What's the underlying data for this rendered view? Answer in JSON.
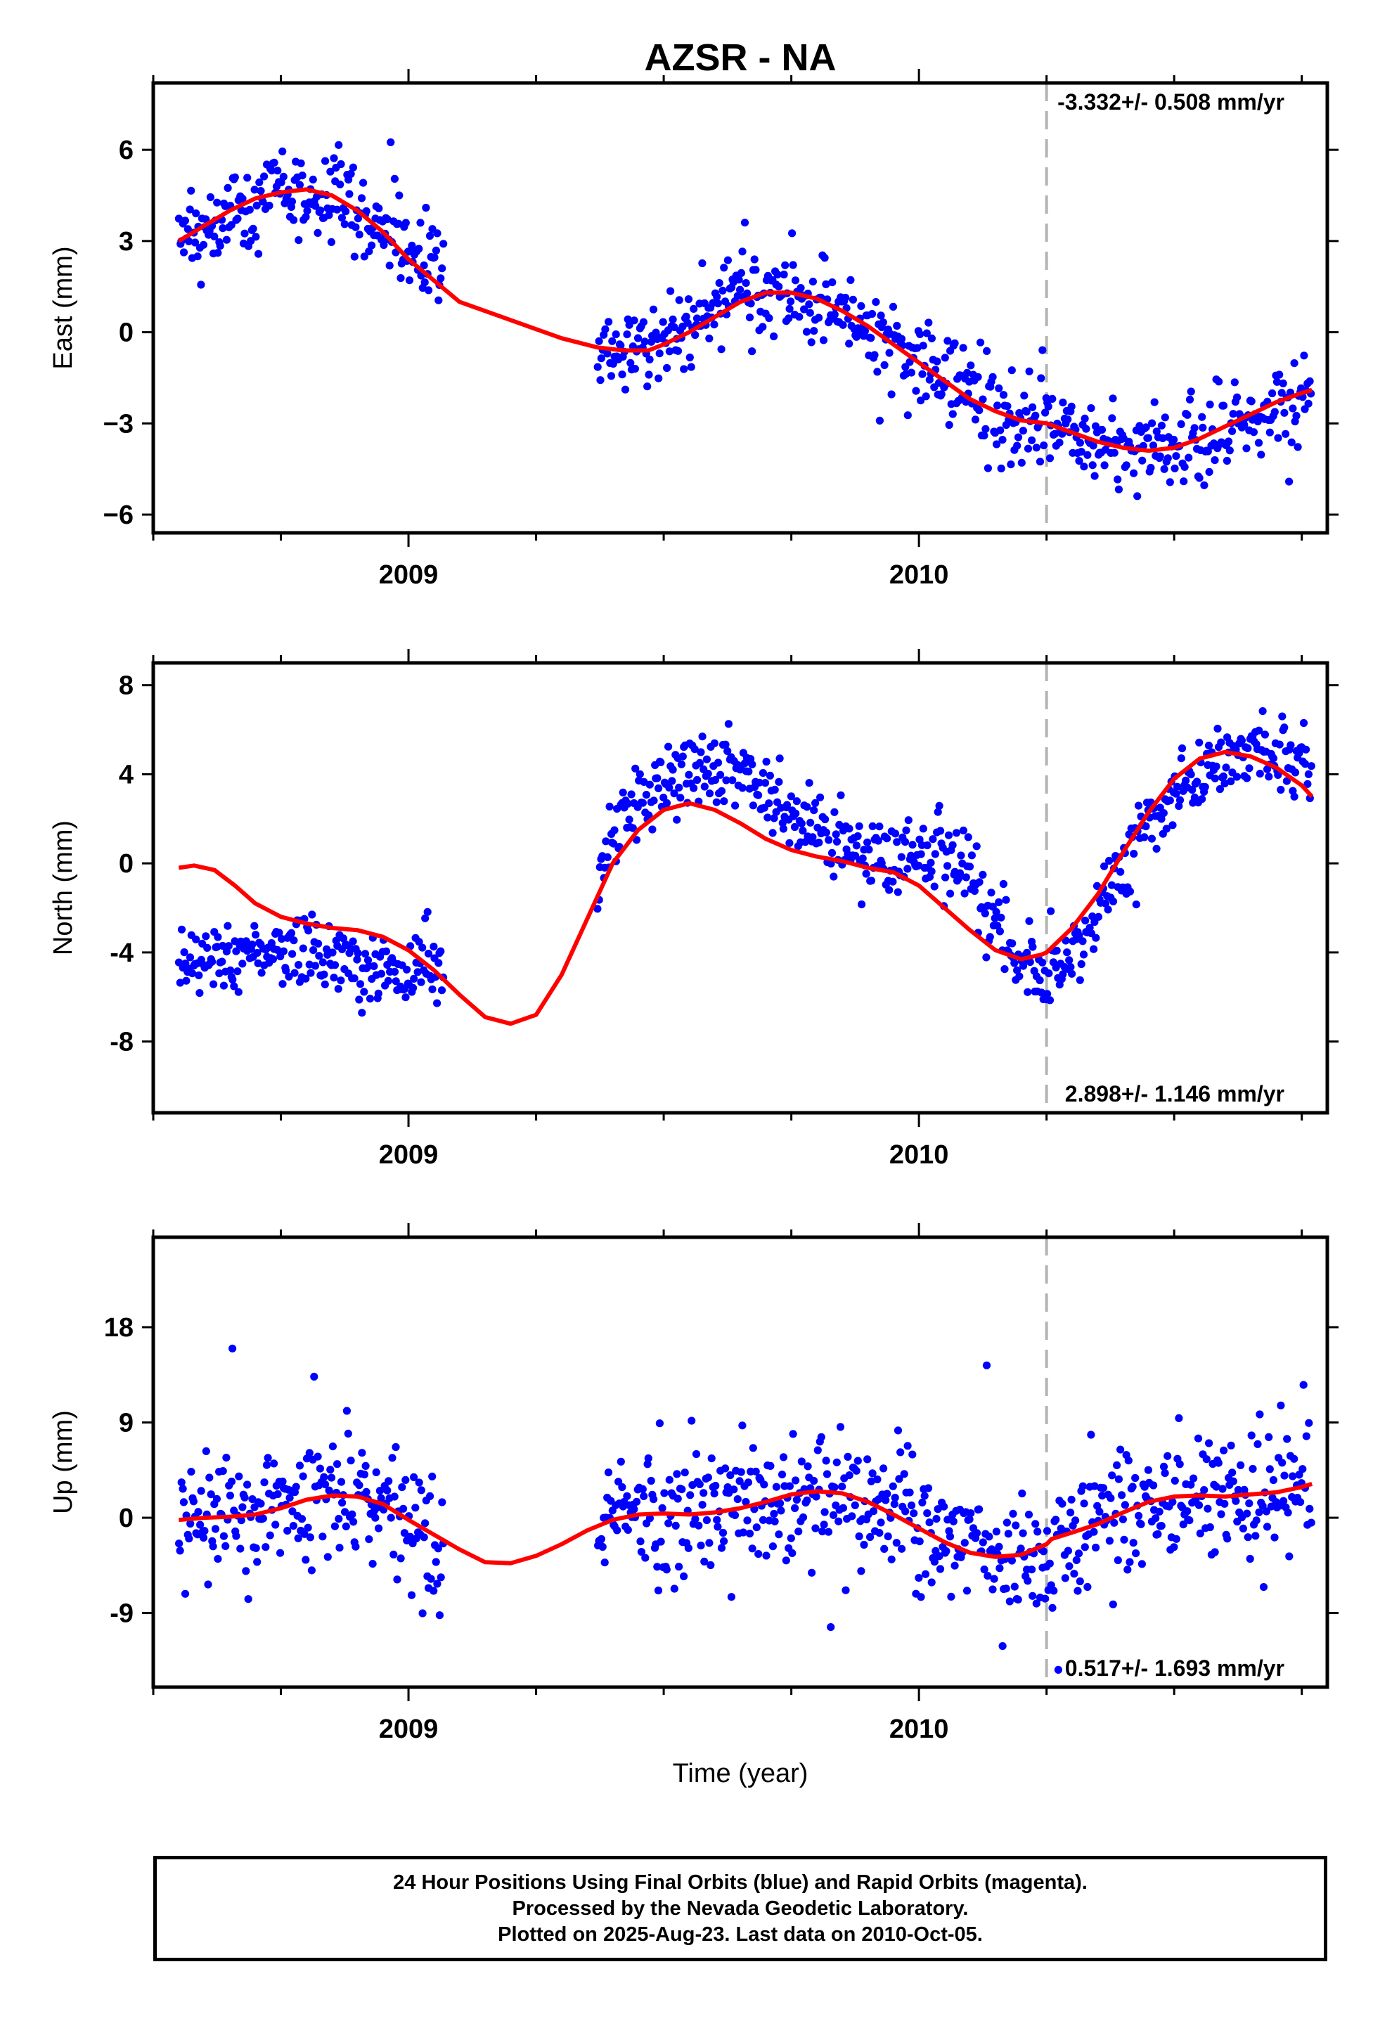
{
  "chart_data": {
    "title": "AZSR - NA",
    "type": "scatter",
    "xlabel": "Time (year)",
    "x_range": [
      2008.5,
      2010.8
    ],
    "x_ticks": [
      2009,
      2010
    ],
    "colors": {
      "observed": "#0000ff",
      "model": "#ff0000",
      "marker_line": "#b4b4b4",
      "frame": "#000000"
    },
    "offset_marker_x": 2010.25,
    "panels": [
      {
        "name": "East",
        "ylabel": "East (mm)",
        "ylim": [
          -6.6,
          8.2
        ],
        "yticks": [
          6,
          3,
          0,
          -3,
          -6
        ],
        "ytick_labels": [
          "6",
          "3",
          "0",
          "−3",
          "−6"
        ],
        "rate_text": "-3.332+/- 0.508 mm/yr",
        "rate_position": "top",
        "model_curve": {
          "x": [
            2008.55,
            2008.6,
            2008.65,
            2008.7,
            2008.75,
            2008.8,
            2008.85,
            2008.9,
            2008.95,
            2009.0,
            2009.05,
            2009.1,
            2009.2,
            2009.3,
            2009.37,
            2009.42,
            2009.47,
            2009.5,
            2009.55,
            2009.6,
            2009.65,
            2009.7,
            2009.75,
            2009.8,
            2009.85,
            2009.9,
            2009.95,
            2010.0,
            2010.05,
            2010.1,
            2010.15,
            2010.2,
            2010.25,
            2010.3,
            2010.35,
            2010.4,
            2010.45,
            2010.5,
            2010.55,
            2010.6,
            2010.65,
            2010.7,
            2010.75,
            2010.77
          ],
          "y": [
            3.0,
            3.5,
            4.0,
            4.4,
            4.6,
            4.7,
            4.5,
            4.0,
            3.3,
            2.4,
            1.7,
            1.0,
            0.4,
            -0.2,
            -0.5,
            -0.6,
            -0.6,
            -0.4,
            0.0,
            0.5,
            1.0,
            1.3,
            1.3,
            1.1,
            0.7,
            0.2,
            -0.4,
            -1.0,
            -1.6,
            -2.2,
            -2.6,
            -2.9,
            -3.0,
            -3.3,
            -3.6,
            -3.8,
            -3.9,
            -3.8,
            -3.5,
            -3.1,
            -2.7,
            -2.3,
            -2.0,
            -1.9
          ]
        },
        "segments": [
          {
            "x0": 2008.55,
            "x1": 2009.07,
            "trend": [
              3.0,
              3.5,
              4.0,
              4.4,
              4.6,
              4.7,
              4.5,
              4.0,
              3.3,
              2.4,
              1.7
            ],
            "spread": 1.1
          },
          {
            "x0": 2009.37,
            "x1": 2010.77,
            "trend": [
              -0.5,
              -0.6,
              -0.4,
              0.1,
              0.6,
              1.1,
              1.3,
              1.2,
              0.8,
              0.2,
              -0.5,
              -1.1,
              -1.8,
              -2.4,
              -2.8,
              -3.0,
              -3.3,
              -3.6,
              -3.8,
              -3.9,
              -3.7,
              -3.3,
              -2.8,
              -2.3,
              -2.0
            ],
            "spread": 1.05
          }
        ]
      },
      {
        "name": "North",
        "ylabel": "North (mm)",
        "ylim": [
          -11.2,
          9.0
        ],
        "yticks": [
          8,
          4,
          0,
          -4,
          -8
        ],
        "ytick_labels": [
          "8",
          "4",
          "0",
          "-4",
          "-8"
        ],
        "rate_text": "2.898+/- 1.146 mm/yr",
        "rate_position": "bottom",
        "model_curve": {
          "x": [
            2008.55,
            2008.58,
            2008.62,
            2008.66,
            2008.7,
            2008.75,
            2008.8,
            2008.85,
            2008.9,
            2008.95,
            2009.0,
            2009.05,
            2009.1,
            2009.15,
            2009.2,
            2009.25,
            2009.3,
            2009.35,
            2009.4,
            2009.45,
            2009.5,
            2009.55,
            2009.6,
            2009.65,
            2009.7,
            2009.75,
            2009.8,
            2009.85,
            2009.9,
            2009.95,
            2010.0,
            2010.05,
            2010.1,
            2010.15,
            2010.2,
            2010.24,
            2010.25,
            2010.3,
            2010.35,
            2010.4,
            2010.45,
            2010.5,
            2010.55,
            2010.6,
            2010.65,
            2010.7,
            2010.75,
            2010.77
          ],
          "y": [
            -0.2,
            -0.1,
            -0.3,
            -1.0,
            -1.8,
            -2.4,
            -2.7,
            -2.9,
            -3.0,
            -3.3,
            -3.9,
            -4.8,
            -5.9,
            -6.9,
            -7.2,
            -6.8,
            -5.0,
            -2.5,
            0.0,
            1.5,
            2.4,
            2.7,
            2.4,
            1.8,
            1.1,
            0.6,
            0.3,
            0.1,
            -0.2,
            -0.4,
            -1.0,
            -2.0,
            -3.0,
            -3.9,
            -4.3,
            -4.1,
            -4.0,
            -2.9,
            -1.4,
            0.5,
            2.3,
            3.8,
            4.7,
            5.0,
            4.8,
            4.3,
            3.5,
            3.0
          ]
        },
        "segments": [
          {
            "x0": 2008.55,
            "x1": 2009.07,
            "trend": [
              -4.2,
              -4.4,
              -4.2,
              -3.8,
              -3.6,
              -3.9,
              -4.2,
              -4.6,
              -4.9,
              -4.8,
              -4.4
            ],
            "spread": 1.3
          },
          {
            "x0": 2009.37,
            "x1": 2010.77,
            "trend": [
              -0.4,
              1.5,
              3.0,
              3.8,
              4.2,
              4.4,
              3.8,
              3.1,
              2.3,
              1.6,
              0.9,
              0.3,
              0.2,
              0.6,
              0.6,
              -0.3,
              -2.0,
              -4.3,
              -5.3,
              -4.4,
              -2.7,
              -0.9,
              0.8,
              2.6,
              3.6,
              4.2,
              5.0,
              5.2,
              4.8,
              4.2
            ],
            "spread": 1.25
          }
        ]
      },
      {
        "name": "Up",
        "ylabel": "Up (mm)",
        "ylim": [
          -16.0,
          26.5
        ],
        "yticks": [
          18,
          9,
          0,
          -9
        ],
        "ytick_labels": [
          "18",
          "9",
          "0",
          "-9"
        ],
        "rate_text": "0.517+/- 1.693 mm/yr",
        "rate_position": "bottom",
        "model_curve": {
          "x": [
            2008.55,
            2008.6,
            2008.65,
            2008.7,
            2008.75,
            2008.8,
            2008.85,
            2008.9,
            2008.95,
            2009.0,
            2009.05,
            2009.1,
            2009.15,
            2009.2,
            2009.25,
            2009.3,
            2009.35,
            2009.4,
            2009.45,
            2009.5,
            2009.55,
            2009.6,
            2009.65,
            2009.7,
            2009.75,
            2009.8,
            2009.85,
            2009.9,
            2009.95,
            2010.0,
            2010.05,
            2010.1,
            2010.15,
            2010.2,
            2010.25,
            2010.26,
            2010.3,
            2010.35,
            2010.4,
            2010.45,
            2010.5,
            2010.55,
            2010.6,
            2010.65,
            2010.7,
            2010.75,
            2010.77
          ],
          "y": [
            -0.2,
            0.0,
            0.1,
            0.3,
            0.9,
            1.7,
            2.1,
            2.0,
            1.3,
            -0.2,
            -1.6,
            -3.0,
            -4.2,
            -4.3,
            -3.6,
            -2.5,
            -1.2,
            -0.2,
            0.3,
            0.4,
            0.3,
            0.5,
            0.9,
            1.5,
            2.2,
            2.5,
            2.3,
            1.5,
            0.3,
            -1.0,
            -2.3,
            -3.3,
            -3.7,
            -3.5,
            -2.5,
            -2.0,
            -1.4,
            -0.6,
            0.5,
            1.5,
            2.0,
            2.1,
            2.0,
            2.2,
            2.4,
            2.9,
            3.2
          ]
        },
        "segments": [
          {
            "x0": 2008.55,
            "x1": 2009.07,
            "trend": [
              0.0,
              0.2,
              0.5,
              1.0,
              1.8,
              2.2,
              2.0,
              1.4,
              0.0,
              -1.5,
              -2.0
            ],
            "spread": 4.6
          },
          {
            "x0": 2009.37,
            "x1": 2010.77,
            "trend": [
              0.0,
              0.4,
              0.6,
              0.5,
              0.7,
              1.2,
              1.8,
              2.4,
              2.4,
              1.6,
              0.2,
              -1.4,
              -2.6,
              -4.4,
              -3.8,
              -2.4,
              -0.8,
              0.5,
              1.4,
              1.8,
              2.0,
              2.3,
              2.6,
              3.0
            ],
            "spread": 4.6
          }
        ]
      }
    ],
    "xtick_labels": [
      "2009",
      "2010"
    ]
  },
  "footer": {
    "line1": "24 Hour Positions Using Final Orbits (blue) and Rapid Orbits (magenta).",
    "line2": "Processed by the Nevada Geodetic Laboratory.",
    "line3": "Plotted on 2025-Aug-23. Last data on 2010-Oct-05."
  }
}
